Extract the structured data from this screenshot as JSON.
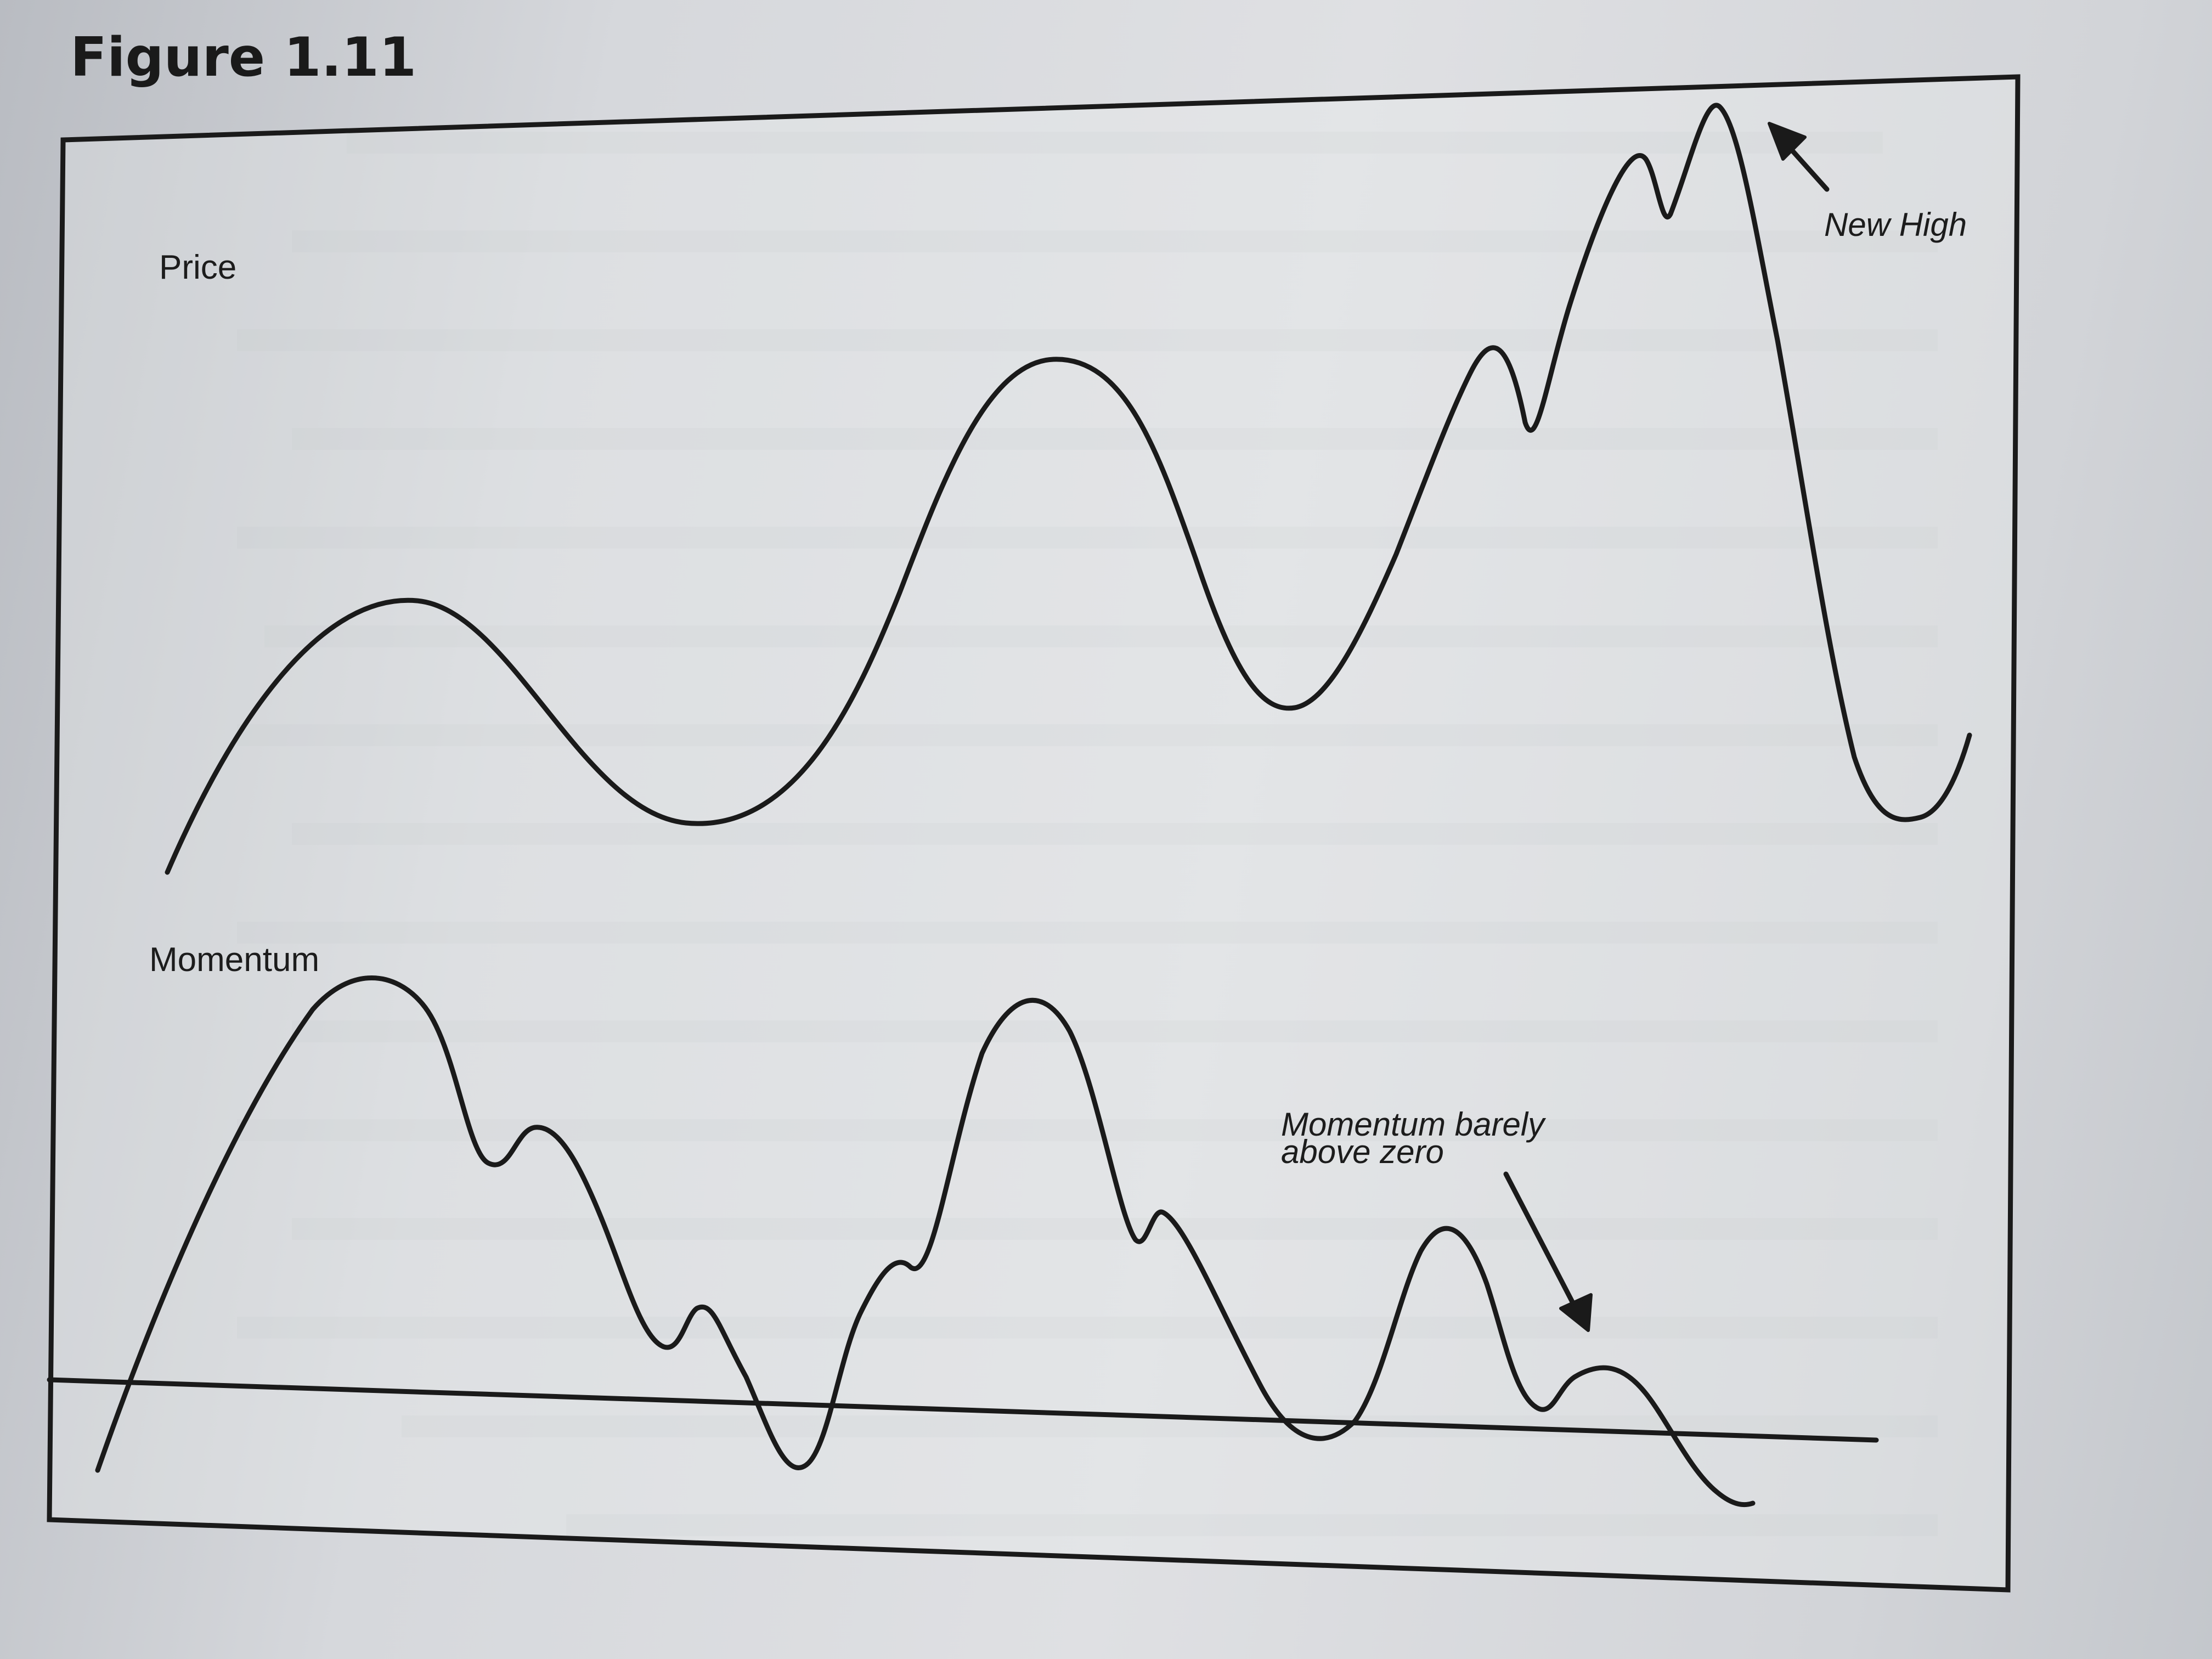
{
  "figure": {
    "title": "Figure 1.11",
    "price_label": "Price",
    "momentum_label": "Momentum",
    "annotation_new_high": "New High",
    "annotation_momentum_line1": "Momentum barely",
    "annotation_momentum_line2": "above zero"
  },
  "colors": {
    "ink": "#1a1a1a",
    "paper": "#dfe0e3"
  }
}
